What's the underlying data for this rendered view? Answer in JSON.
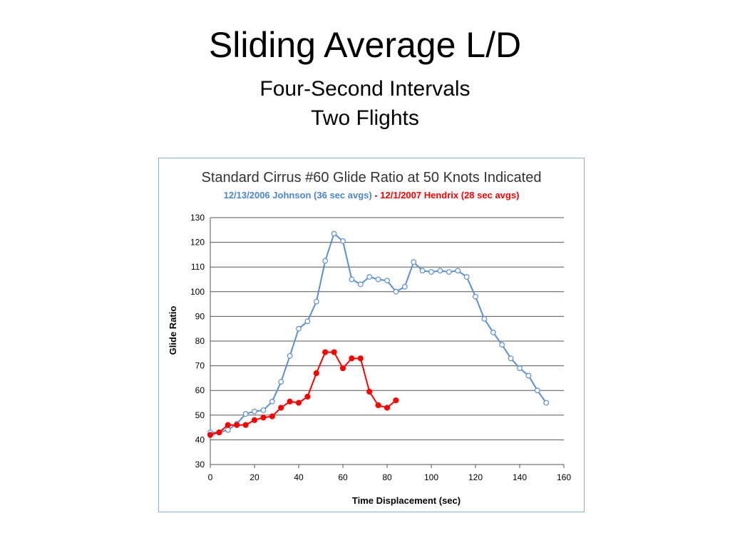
{
  "slide": {
    "title": "Sliding Average L/D",
    "subtitle1": "Four-Second Intervals",
    "subtitle2": "Two Flights"
  },
  "colors": {
    "series1": "#5b8fcf",
    "series2": "#ff0000",
    "grid": "#555555",
    "frame": "#8eaed0"
  },
  "chart_data": {
    "type": "line",
    "title": "Standard Cirrus #60 Glide Ratio at 50 Knots Indicated",
    "subtitle_parts": [
      "12/13/2006 Johnson (36 sec avgs)",
      " - ",
      "12/1/2007 Hendrix (28 sec avgs)"
    ],
    "xlabel": "Time Displacement  (sec)",
    "ylabel": "Glide Ratio",
    "xlim": [
      0,
      160
    ],
    "ylim": [
      30,
      130
    ],
    "xticks": [
      0,
      20,
      40,
      60,
      80,
      100,
      120,
      140,
      160
    ],
    "yticks": [
      30,
      40,
      50,
      60,
      70,
      80,
      90,
      100,
      110,
      120,
      130
    ],
    "grid": "horizontal",
    "series": [
      {
        "name": "12/13/2006 Johnson (36 sec avgs)",
        "marker": "open-circle",
        "points": [
          [
            0,
            43
          ],
          [
            4,
            43
          ],
          [
            8,
            44
          ],
          [
            12,
            46.5
          ],
          [
            16,
            50.5
          ],
          [
            20,
            51.5
          ],
          [
            24,
            52
          ],
          [
            28,
            55.5
          ],
          [
            32,
            63.5
          ],
          [
            36,
            74
          ],
          [
            40,
            85
          ],
          [
            44,
            88
          ],
          [
            48,
            96
          ],
          [
            52,
            112.5
          ],
          [
            56,
            123.5
          ],
          [
            60,
            120.5
          ],
          [
            64,
            105
          ],
          [
            68,
            103
          ],
          [
            72,
            106
          ],
          [
            76,
            105
          ],
          [
            80,
            104.5
          ],
          [
            84,
            100
          ],
          [
            88,
            102
          ],
          [
            92,
            112
          ],
          [
            96,
            108.5
          ],
          [
            100,
            108
          ],
          [
            104,
            108.5
          ],
          [
            108,
            108
          ],
          [
            112,
            108.5
          ],
          [
            116,
            106
          ],
          [
            120,
            98
          ],
          [
            124,
            89
          ],
          [
            128,
            83.5
          ],
          [
            132,
            78.5
          ],
          [
            136,
            73
          ],
          [
            140,
            69
          ],
          [
            144,
            66
          ],
          [
            148,
            60
          ],
          [
            152,
            55
          ]
        ]
      },
      {
        "name": "12/1/2007 Hendrix (28 sec avgs)",
        "marker": "filled-circle",
        "points": [
          [
            0,
            42
          ],
          [
            4,
            43
          ],
          [
            8,
            46
          ],
          [
            12,
            46
          ],
          [
            16,
            46
          ],
          [
            20,
            48
          ],
          [
            24,
            49
          ],
          [
            28,
            49.5
          ],
          [
            32,
            53
          ],
          [
            36,
            55.5
          ],
          [
            40,
            55
          ],
          [
            44,
            57.5
          ],
          [
            48,
            67
          ],
          [
            52,
            75.5
          ],
          [
            56,
            75.5
          ],
          [
            60,
            69
          ],
          [
            64,
            73
          ],
          [
            68,
            73
          ],
          [
            72,
            59.5
          ],
          [
            76,
            54
          ],
          [
            80,
            53
          ],
          [
            84,
            56
          ]
        ]
      }
    ]
  }
}
